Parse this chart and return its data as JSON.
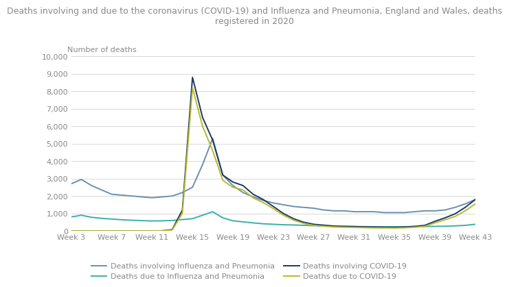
{
  "title": "Deaths involving and due to the coronavirus (COVID-19) and Influenza and Pneumonia, England and Wales, deaths\nregistered in 2020",
  "ylabel": "Number of deaths",
  "weeks": [
    "Week 3",
    "Week 7",
    "Week 11",
    "Week 15",
    "Week 19",
    "Week 23",
    "Week 27",
    "Week 31",
    "Week 35",
    "Week 39",
    "Week 43"
  ],
  "week_indices": [
    3,
    7,
    11,
    15,
    19,
    23,
    27,
    31,
    35,
    39,
    43
  ],
  "x_all": [
    3,
    4,
    5,
    6,
    7,
    8,
    9,
    10,
    11,
    12,
    13,
    14,
    15,
    16,
    17,
    18,
    19,
    20,
    21,
    22,
    23,
    24,
    25,
    26,
    27,
    28,
    29,
    30,
    31,
    32,
    33,
    34,
    35,
    36,
    37,
    38,
    39,
    40,
    41,
    42,
    43
  ],
  "deaths_involving_flu": [
    2700,
    2950,
    2600,
    2350,
    2100,
    2050,
    2000,
    1950,
    1900,
    1950,
    2000,
    2200,
    2500,
    3800,
    5300,
    3200,
    2600,
    2200,
    1950,
    1750,
    1600,
    1500,
    1400,
    1350,
    1300,
    1200,
    1150,
    1150,
    1100,
    1100,
    1100,
    1050,
    1050,
    1050,
    1100,
    1150,
    1150,
    1200,
    1350,
    1550,
    1800
  ],
  "deaths_due_flu": [
    800,
    900,
    780,
    720,
    680,
    640,
    610,
    590,
    570,
    580,
    600,
    650,
    700,
    900,
    1100,
    750,
    580,
    520,
    460,
    410,
    380,
    355,
    340,
    320,
    300,
    280,
    265,
    255,
    250,
    245,
    240,
    235,
    235,
    235,
    245,
    255,
    260,
    270,
    290,
    320,
    380
  ],
  "deaths_involving_covid": [
    0,
    0,
    0,
    0,
    0,
    0,
    0,
    0,
    0,
    10,
    80,
    1200,
    8800,
    6500,
    5200,
    3200,
    2800,
    2600,
    2100,
    1800,
    1400,
    1000,
    700,
    500,
    380,
    330,
    280,
    260,
    250,
    235,
    225,
    215,
    210,
    230,
    260,
    320,
    550,
    750,
    980,
    1350,
    1800
  ],
  "deaths_due_covid": [
    0,
    0,
    0,
    0,
    0,
    0,
    0,
    0,
    0,
    5,
    60,
    1000,
    8200,
    6000,
    4600,
    2900,
    2500,
    2350,
    1900,
    1620,
    1280,
    900,
    620,
    430,
    320,
    270,
    230,
    210,
    200,
    185,
    175,
    170,
    165,
    180,
    210,
    265,
    460,
    640,
    830,
    1150,
    1550
  ],
  "color_involving_flu": "#6a8faf",
  "color_due_flu": "#3aafa9",
  "color_involving_covid": "#1a3a5c",
  "color_due_covid": "#b8b830",
  "ylim": [
    0,
    10000
  ],
  "yticks": [
    0,
    1000,
    2000,
    3000,
    4000,
    5000,
    6000,
    7000,
    8000,
    9000,
    10000
  ],
  "ytick_labels": [
    "0",
    "1,000",
    "2,000",
    "3,000",
    "4,000",
    "5,000",
    "6,000",
    "7,000",
    "8,000",
    "9,000",
    "10,000"
  ],
  "bg_color": "#ffffff",
  "grid_color": "#d8d8d8",
  "label_involving_flu": "Deaths involving Influenza and Pneumonia",
  "label_due_flu": "Deaths due to Influenza and Pneumonia",
  "label_involving_covid": "Deaths involving COVID-19",
  "label_due_covid": "Deaths due to COVID-19",
  "line_width": 1.4,
  "title_fontsize": 9.0,
  "label_fontsize": 8,
  "tick_fontsize": 8
}
